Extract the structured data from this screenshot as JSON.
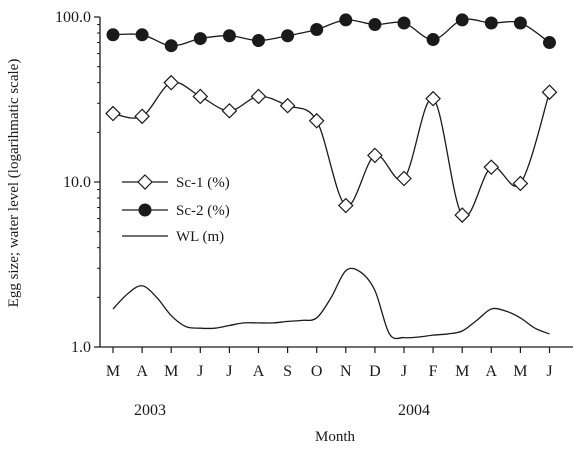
{
  "chart_data": {
    "type": "line",
    "xlabel": "Month",
    "ylabel": "Egg size; water level (logarihmatic scale)",
    "yscale": "log",
    "ylim": [
      1.0,
      100.0
    ],
    "yticks": [
      1.0,
      10.0,
      100.0
    ],
    "ytick_labels": [
      "1.0",
      "10.0",
      "100.0"
    ],
    "months": [
      "M",
      "A",
      "M",
      "J",
      "J",
      "A",
      "S",
      "O",
      "N",
      "D",
      "J",
      "F",
      "M",
      "A",
      "M",
      "J"
    ],
    "years": [
      "2003",
      "2004"
    ],
    "legend_position": "center-left",
    "grid": false,
    "series": [
      {
        "name": "Sc-1 (%)",
        "marker": "diamond-open",
        "x": [
          0,
          1,
          2,
          3,
          4,
          5,
          6,
          7,
          8,
          9,
          10,
          11,
          12,
          13,
          14,
          15
        ],
        "values": [
          26,
          25,
          40,
          33,
          27,
          33,
          29,
          23.5,
          7.2,
          14.5,
          10.5,
          32,
          6.3,
          12.3,
          9.8,
          35
        ]
      },
      {
        "name": "Sc-2 (%)",
        "marker": "circle-filled",
        "x": [
          0,
          1,
          2,
          3,
          4,
          5,
          6,
          7,
          8,
          9,
          10,
          11,
          12,
          13,
          14,
          15
        ],
        "values": [
          78,
          78,
          67,
          74,
          77,
          72,
          77,
          84,
          96,
          90,
          92,
          73,
          96,
          92,
          92,
          70
        ]
      },
      {
        "name": "WL  (m)",
        "marker": "none",
        "x": [
          0.0,
          0.5,
          1.0,
          1.5,
          2.0,
          2.5,
          3.0,
          3.5,
          4.0,
          4.5,
          5.0,
          5.5,
          6.0,
          6.5,
          7.0,
          7.5,
          8.0,
          8.5,
          9.0,
          9.5,
          10.0,
          10.5,
          11.0,
          11.5,
          12.0,
          12.5,
          13.0,
          13.5,
          14.0,
          14.5,
          15.0
        ],
        "values": [
          1.7,
          2.1,
          2.35,
          2.0,
          1.55,
          1.33,
          1.3,
          1.3,
          1.35,
          1.4,
          1.4,
          1.4,
          1.43,
          1.45,
          1.5,
          2.0,
          2.9,
          2.85,
          2.2,
          1.2,
          1.14,
          1.15,
          1.18,
          1.2,
          1.25,
          1.45,
          1.7,
          1.65,
          1.5,
          1.3,
          1.2
        ]
      }
    ]
  }
}
